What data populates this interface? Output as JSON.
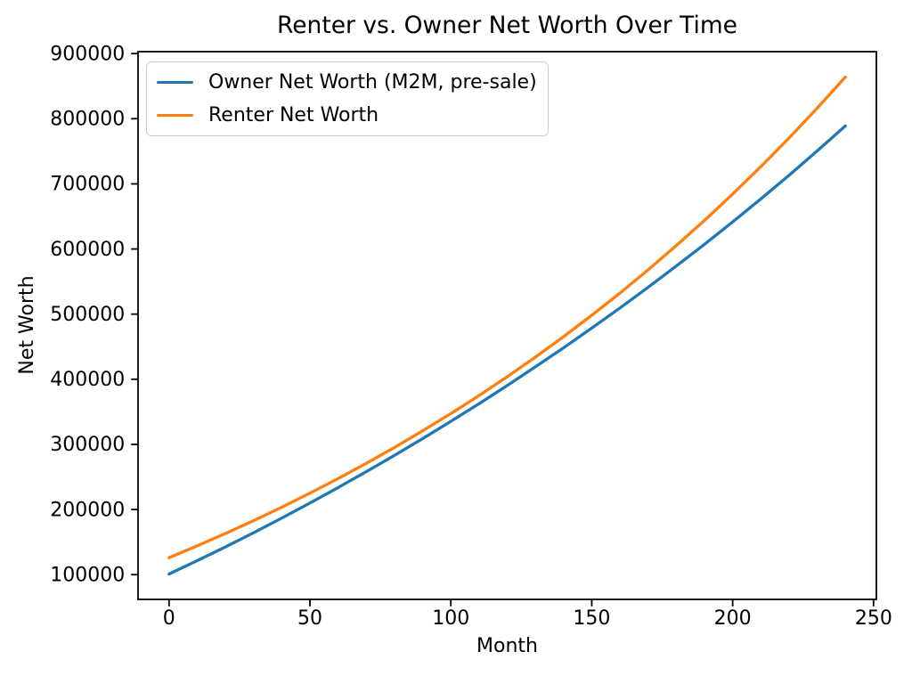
{
  "figure": {
    "background": "#ffffff"
  },
  "chart_data": {
    "type": "line",
    "title": "Renter vs. Owner Net Worth Over Time",
    "xlabel": "Month",
    "ylabel": "Net Worth",
    "xlim": [
      -11,
      251
    ],
    "ylim": [
      62000,
      903000
    ],
    "xticks": [
      0,
      50,
      100,
      150,
      200,
      250
    ],
    "xtick_labels": [
      "0",
      "50",
      "100",
      "150",
      "200",
      "250"
    ],
    "yticks": [
      100000,
      200000,
      300000,
      400000,
      500000,
      600000,
      700000,
      800000,
      900000
    ],
    "ytick_labels": [
      "100000",
      "200000",
      "300000",
      "400000",
      "500000",
      "600000",
      "700000",
      "800000",
      "900000"
    ],
    "grid": false,
    "legend_position": "upper-left",
    "x": [
      0,
      10,
      20,
      30,
      40,
      50,
      60,
      70,
      80,
      90,
      100,
      110,
      120,
      130,
      140,
      150,
      160,
      170,
      180,
      190,
      200,
      210,
      220,
      230,
      240
    ],
    "series": [
      {
        "name": "Owner Net Worth (M2M, pre-sale)",
        "color": "#1f77b4",
        "values": [
          101000,
          121500,
          142600,
          164300,
          186800,
          209900,
          233700,
          258100,
          283100,
          308900,
          335300,
          362500,
          390300,
          419000,
          448300,
          478500,
          509400,
          541200,
          573800,
          607200,
          641600,
          676900,
          713100,
          750700,
          789000
        ]
      },
      {
        "name": "Renter Net Worth",
        "color": "#ff7f0e",
        "values": [
          126000,
          144200,
          163200,
          182900,
          203600,
          225100,
          247600,
          271000,
          295300,
          320800,
          347300,
          375000,
          403900,
          434000,
          465400,
          498200,
          532300,
          568000,
          605100,
          643900,
          684300,
          726400,
          770300,
          816300,
          864000
        ]
      }
    ]
  }
}
